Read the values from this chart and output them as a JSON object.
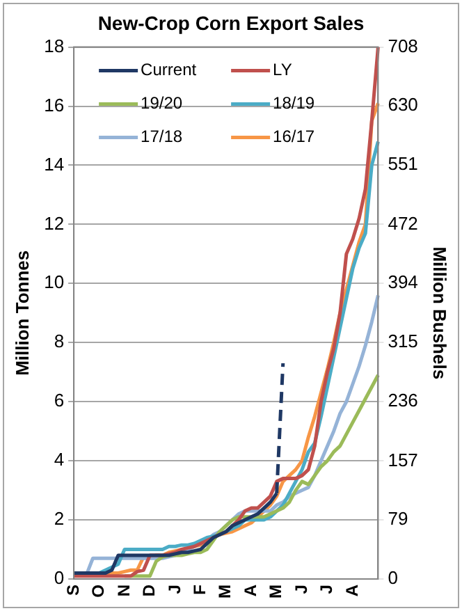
{
  "chart_data": {
    "type": "line",
    "title": "New-Crop Corn Export Sales",
    "ylabel": "Million Tonnes",
    "y2label": "Million Bushels",
    "categories": [
      "S",
      null,
      null,
      null,
      "O",
      null,
      null,
      null,
      "N",
      null,
      null,
      null,
      "D",
      null,
      null,
      null,
      "J",
      null,
      null,
      null,
      "F",
      null,
      null,
      null,
      "M",
      null,
      null,
      null,
      "A",
      null,
      null,
      null,
      "M",
      null,
      null,
      null,
      "J",
      null,
      null,
      null,
      "J",
      null,
      null,
      null,
      "A",
      null,
      null,
      null,
      null
    ],
    "series": [
      {
        "name": "Current",
        "color": "#1f3864",
        "values": [
          0.2,
          0.2,
          0.2,
          0.2,
          0.2,
          0.2,
          0.3,
          0.8,
          0.8,
          0.8,
          0.8,
          0.8,
          0.8,
          0.8,
          0.8,
          0.8,
          0.85,
          0.9,
          0.9,
          0.95,
          1.0,
          1.2,
          1.4,
          1.5,
          1.6,
          1.8,
          1.9,
          2.0,
          2.1,
          2.2,
          2.4,
          2.6,
          2.9,
          null,
          null,
          null,
          null,
          null,
          null,
          null,
          null,
          null,
          null,
          null,
          null,
          null,
          null,
          null,
          null
        ]
      },
      {
        "color": "#1f3864",
        "line_style": "dashed",
        "values": [
          null,
          null,
          null,
          null,
          null,
          null,
          null,
          null,
          null,
          null,
          null,
          null,
          null,
          null,
          null,
          null,
          null,
          null,
          null,
          null,
          null,
          null,
          null,
          null,
          null,
          null,
          null,
          null,
          null,
          null,
          null,
          null,
          2.9,
          7.3,
          null,
          null,
          null,
          null,
          null,
          null,
          null,
          null,
          null,
          null,
          null,
          null,
          null,
          null,
          null
        ]
      },
      {
        "name": "LY",
        "color": "#c0504d",
        "values": [
          0.1,
          0.1,
          0.1,
          0.1,
          0.1,
          0.1,
          0.1,
          0.1,
          0.1,
          0.1,
          0.25,
          0.3,
          0.8,
          0.8,
          0.8,
          0.85,
          0.9,
          1.0,
          1.05,
          1.1,
          1.2,
          1.3,
          1.4,
          1.5,
          1.6,
          1.8,
          2.0,
          2.3,
          2.4,
          2.4,
          2.6,
          2.8,
          3.3,
          3.4,
          3.4,
          3.4,
          3.5,
          3.7,
          4.5,
          6.0,
          7.0,
          7.8,
          9.0,
          11.0,
          11.5,
          12.2,
          13.2,
          15.5,
          18.0
        ]
      },
      {
        "name": "19/20",
        "color": "#9bbb59",
        "values": [
          null,
          null,
          null,
          null,
          null,
          null,
          null,
          null,
          0.1,
          0.1,
          0.1,
          0.1,
          0.1,
          0.6,
          0.75,
          0.8,
          0.8,
          0.8,
          0.85,
          0.9,
          0.9,
          1.0,
          1.3,
          1.6,
          1.8,
          2.0,
          2.1,
          2.1,
          2.1,
          2.1,
          2.1,
          2.2,
          2.3,
          2.4,
          2.6,
          3.0,
          3.3,
          3.2,
          3.5,
          3.8,
          4.0,
          4.3,
          4.5,
          4.9,
          5.3,
          5.7,
          6.1,
          6.5,
          6.9
        ]
      },
      {
        "name": "18/19",
        "color": "#4bacc6",
        "values": [
          0.2,
          0.2,
          0.2,
          0.2,
          0.2,
          0.3,
          0.4,
          0.5,
          1.0,
          1.0,
          1.0,
          1.0,
          1.0,
          1.0,
          1.0,
          1.1,
          1.1,
          1.15,
          1.15,
          1.2,
          1.3,
          1.4,
          1.45,
          1.5,
          1.6,
          1.7,
          1.8,
          2.0,
          2.0,
          2.0,
          2.0,
          2.1,
          2.3,
          2.5,
          2.9,
          3.3,
          3.7,
          4.3,
          4.6,
          5.5,
          6.5,
          7.5,
          8.5,
          9.5,
          10.5,
          11.2,
          11.7,
          14.0,
          14.8
        ]
      },
      {
        "name": "17/18",
        "color": "#95b3d7",
        "values": [
          0.15,
          0.15,
          0.15,
          0.7,
          0.7,
          0.7,
          0.7,
          0.7,
          0.7,
          0.7,
          0.7,
          0.7,
          0.7,
          0.7,
          0.7,
          0.75,
          0.8,
          0.9,
          1.0,
          1.1,
          1.2,
          1.3,
          1.5,
          1.6,
          1.8,
          2.0,
          2.2,
          2.3,
          2.3,
          2.3,
          2.3,
          2.3,
          2.5,
          2.6,
          2.8,
          2.9,
          3.0,
          3.1,
          3.5,
          4.0,
          4.5,
          5.0,
          5.6,
          6.0,
          6.6,
          7.2,
          7.9,
          8.7,
          9.6
        ]
      },
      {
        "name": "16/17",
        "color": "#f79646",
        "values": [
          null,
          null,
          null,
          null,
          0.15,
          0.15,
          0.2,
          0.2,
          0.25,
          0.3,
          0.3,
          0.75,
          0.75,
          0.8,
          0.8,
          0.9,
          0.95,
          1.0,
          1.0,
          1.1,
          1.15,
          1.3,
          1.4,
          1.5,
          1.55,
          1.6,
          1.7,
          1.8,
          1.9,
          2.1,
          2.3,
          2.5,
          2.8,
          3.3,
          3.5,
          3.7,
          4.0,
          4.8,
          5.5,
          6.3,
          7.1,
          8.0,
          9.0,
          9.8,
          10.6,
          11.4,
          12.0,
          15.5,
          16.1
        ]
      }
    ],
    "ylim": [
      0,
      18
    ],
    "yticks": [
      0,
      2,
      4,
      6,
      8,
      10,
      12,
      14,
      16,
      18
    ],
    "y2lim": [
      0,
      708
    ],
    "y2ticks": [
      0,
      79,
      157,
      236,
      315,
      394,
      472,
      551,
      630,
      708
    ],
    "grid": "y",
    "legend": "top left"
  }
}
